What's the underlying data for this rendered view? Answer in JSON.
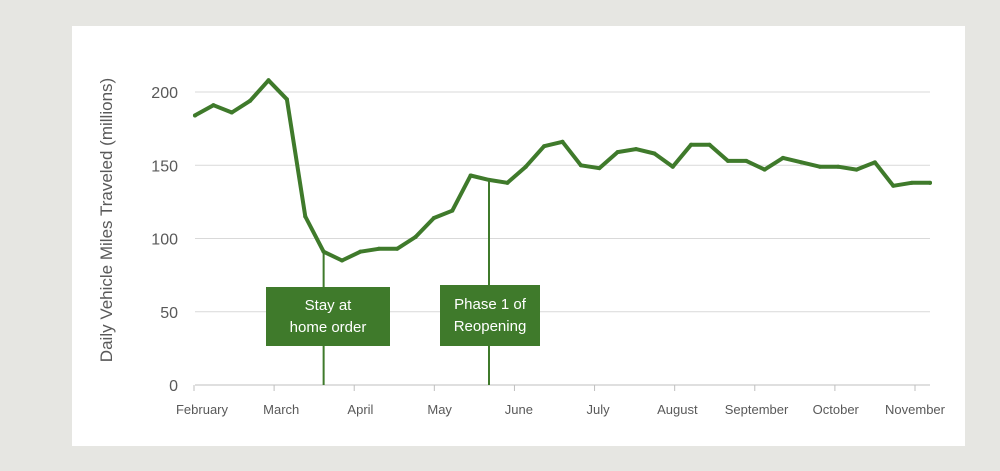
{
  "chart_data": {
    "type": "line",
    "title": "",
    "xlabel": "",
    "ylabel": "Daily Vehicle Miles Traveled (millions)",
    "ylim": [
      0,
      200
    ],
    "yticks": [
      0,
      50,
      100,
      150,
      200
    ],
    "grid": true,
    "x_tick_labels": [
      "February",
      "March",
      "April",
      "May",
      "June",
      "July",
      "August",
      "September",
      "October",
      "November"
    ],
    "series": [
      {
        "name": "",
        "color": "#3f7a2b",
        "values": [
          184,
          191,
          186,
          194,
          208,
          195,
          115,
          91,
          85,
          91,
          93,
          93,
          101,
          114,
          119,
          143,
          140,
          138,
          149,
          163,
          166,
          150,
          148,
          159,
          161,
          158,
          149,
          164,
          164,
          153,
          153,
          147,
          155,
          152,
          149,
          149,
          147,
          152,
          136,
          138,
          138
        ]
      }
    ],
    "annotations": [
      {
        "id": "stay-at-home",
        "lines": [
          "Stay at",
          "home order"
        ],
        "x_index": 7
      },
      {
        "id": "phase-1",
        "lines": [
          "Phase 1 of",
          "Reopening"
        ],
        "x_index": 16
      }
    ]
  },
  "colors": {
    "line": "#3f7a2b",
    "annotation_bg": "#3f7a2b",
    "grid": "#d9d9d9",
    "axis_text": "#595959"
  }
}
